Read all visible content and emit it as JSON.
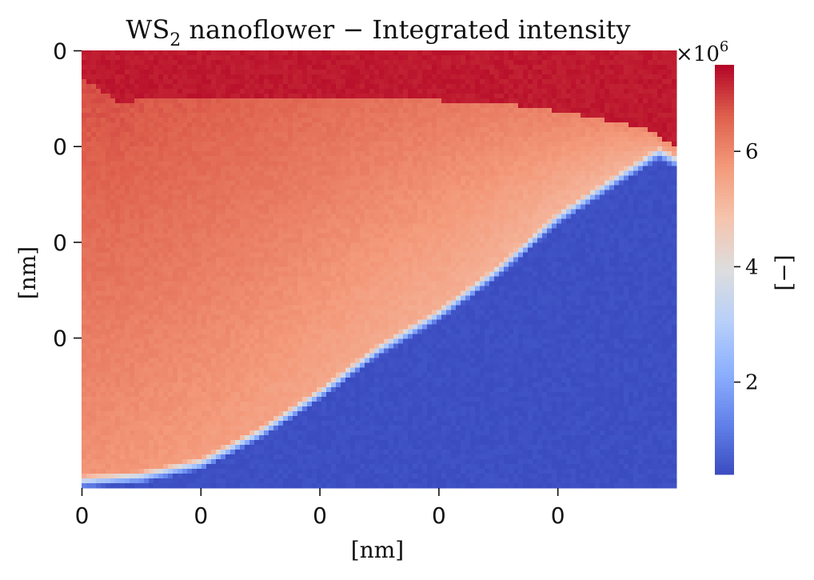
{
  "chart_data": {
    "type": "heatmap",
    "title": "WS",
    "title_subscript": "2",
    "title_rest": " nanoflower − Integrated intensity",
    "xlabel": "[nm]",
    "ylabel": "[nm]",
    "x_tick_labels": [
      "0",
      "0",
      "0",
      "0",
      "0"
    ],
    "y_tick_labels": [
      "0",
      "0",
      "0",
      "0"
    ],
    "colorbar": {
      "label": "[−]",
      "exponent_base": "×10",
      "exponent_power": "6",
      "tick_labels": [
        "2",
        "4",
        "6"
      ],
      "tick_values": [
        2,
        4,
        6
      ],
      "range": [
        0.4,
        7.5
      ],
      "colormap": "coolwarm"
    },
    "regions": {
      "top_band_value": 7.3,
      "upper_left_value": 6.8,
      "middle_value": 6.2,
      "lower_left_value": 5.8,
      "substrate_value": 0.45
    },
    "grid": false,
    "legend": "none"
  }
}
